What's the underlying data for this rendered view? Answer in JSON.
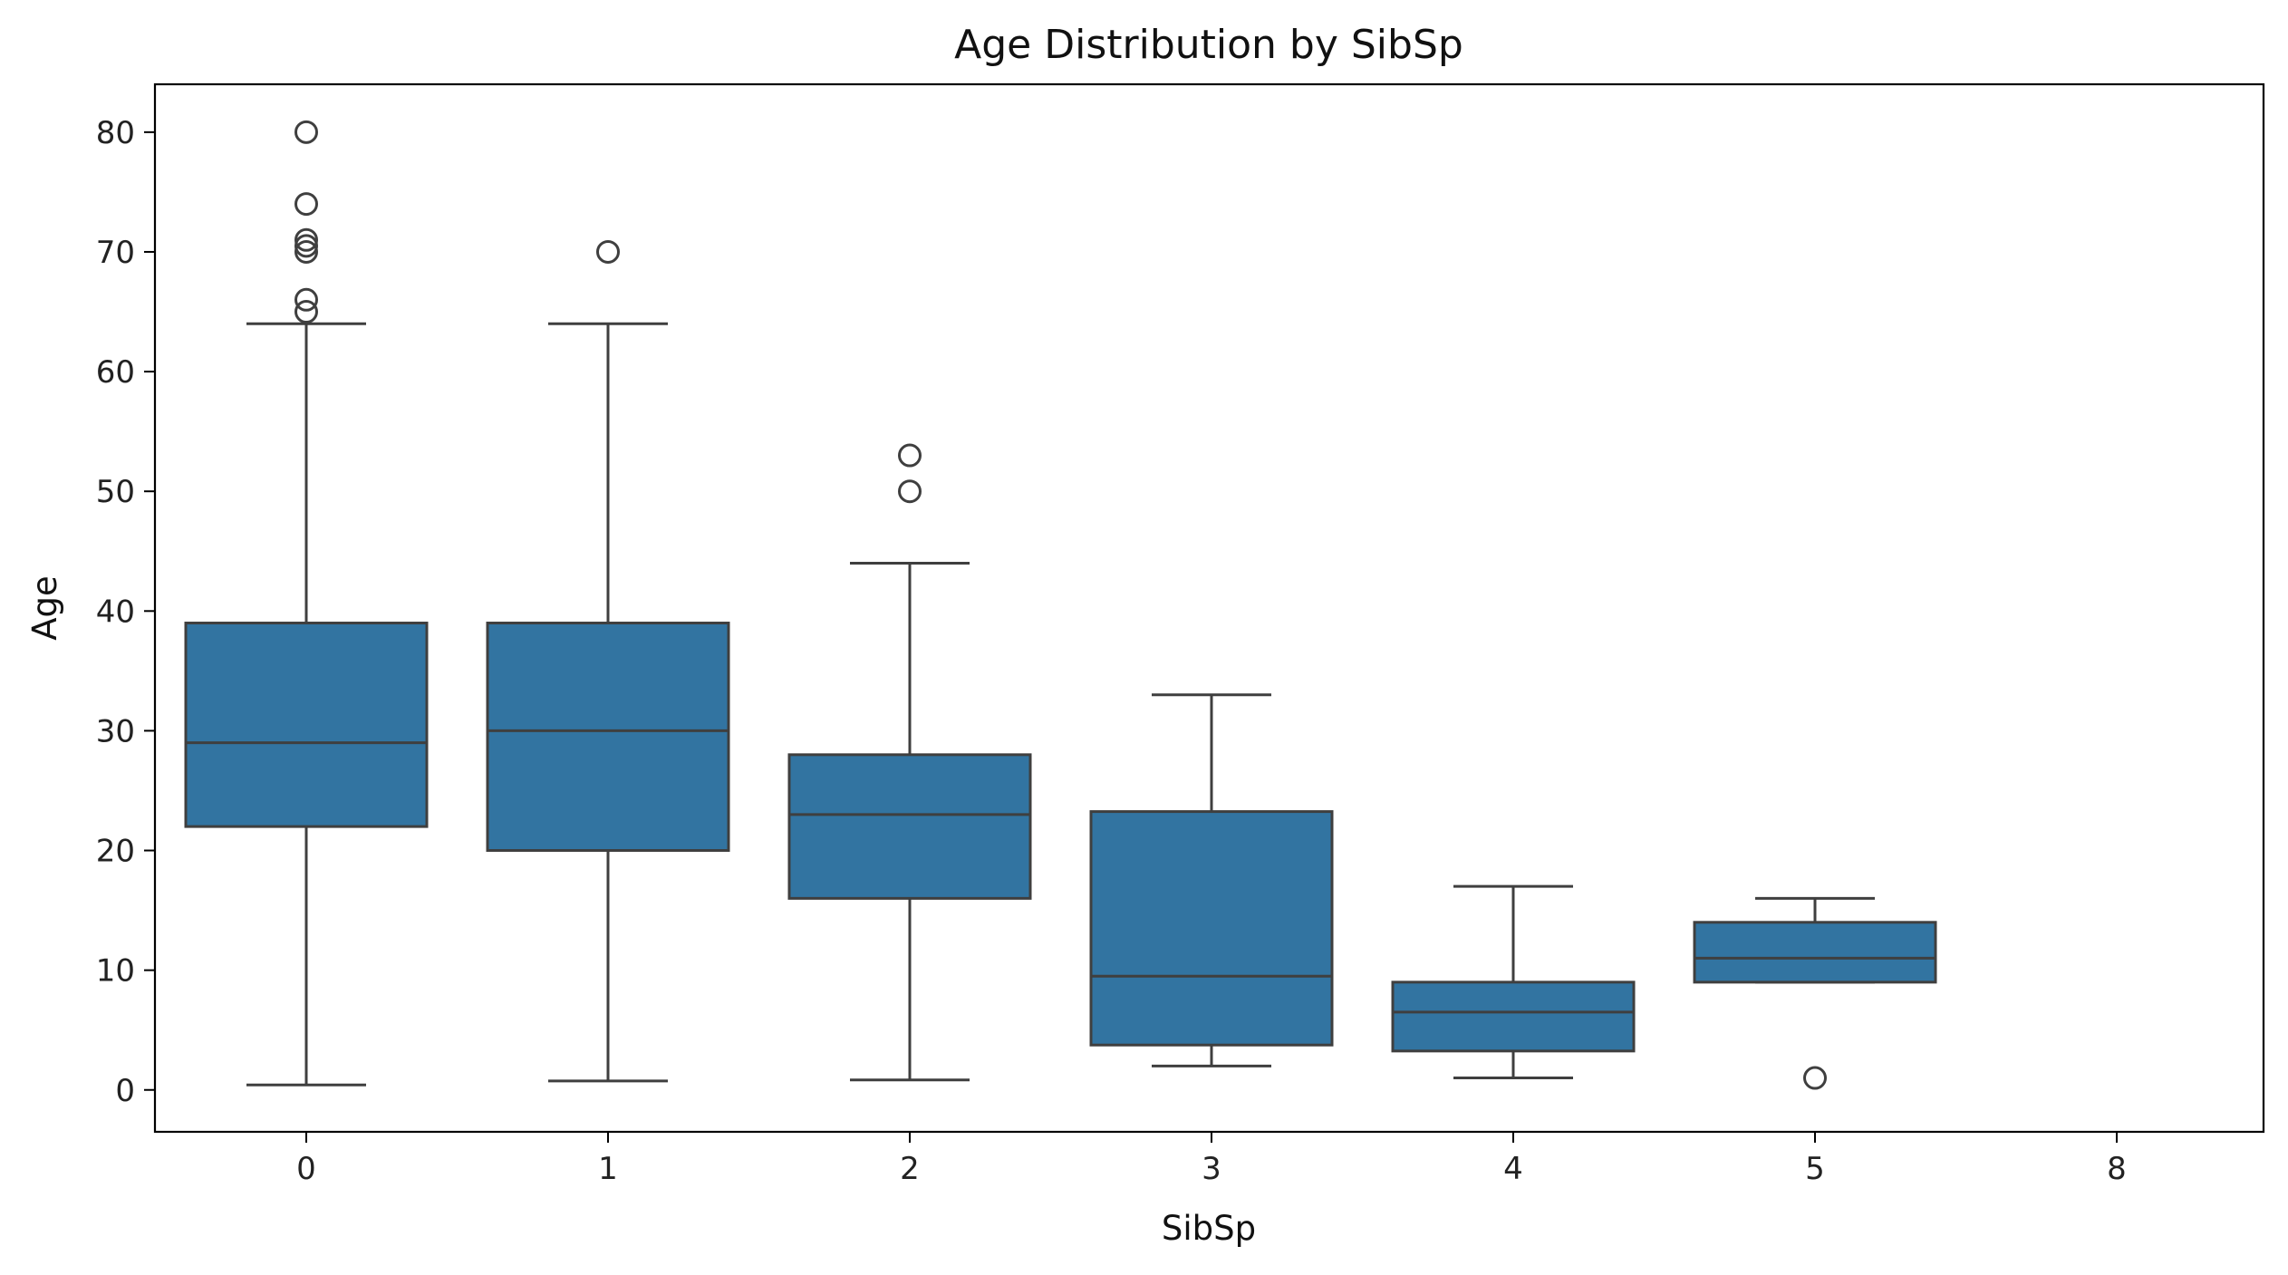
{
  "chart_data": {
    "type": "box",
    "title": "Age Distribution by SibSp",
    "xlabel": "SibSp",
    "ylabel": "Age",
    "categories": [
      "0",
      "1",
      "2",
      "3",
      "4",
      "5",
      "8"
    ],
    "yticks": [
      0,
      10,
      20,
      30,
      40,
      50,
      60,
      70,
      80
    ],
    "ylim": [
      -3.5,
      84
    ],
    "grid": false,
    "legend": "none",
    "box_color": "#3274a1",
    "line_color": "#3f3f3f",
    "boxes": [
      {
        "category": "0",
        "whisker_low": 0.42,
        "q1": 22,
        "median": 29,
        "q3": 39,
        "whisker_high": 64,
        "outliers": [
          65,
          66,
          70,
          70.5,
          71,
          74,
          80
        ]
      },
      {
        "category": "1",
        "whisker_low": 0.75,
        "q1": 20,
        "median": 30,
        "q3": 39,
        "whisker_high": 64,
        "outliers": [
          70
        ]
      },
      {
        "category": "2",
        "whisker_low": 0.83,
        "q1": 16,
        "median": 23,
        "q3": 28,
        "whisker_high": 44,
        "outliers": [
          50,
          53
        ]
      },
      {
        "category": "3",
        "whisker_low": 2,
        "q1": 3.75,
        "median": 9.5,
        "q3": 23.25,
        "whisker_high": 33,
        "outliers": []
      },
      {
        "category": "4",
        "whisker_low": 1,
        "q1": 3.25,
        "median": 6.5,
        "q3": 9,
        "whisker_high": 17,
        "outliers": []
      },
      {
        "category": "5",
        "whisker_low": 9,
        "q1": 9,
        "median": 11,
        "q3": 14,
        "whisker_high": 16,
        "outliers": [
          1
        ]
      },
      {
        "category": "8",
        "empty": true
      }
    ]
  }
}
